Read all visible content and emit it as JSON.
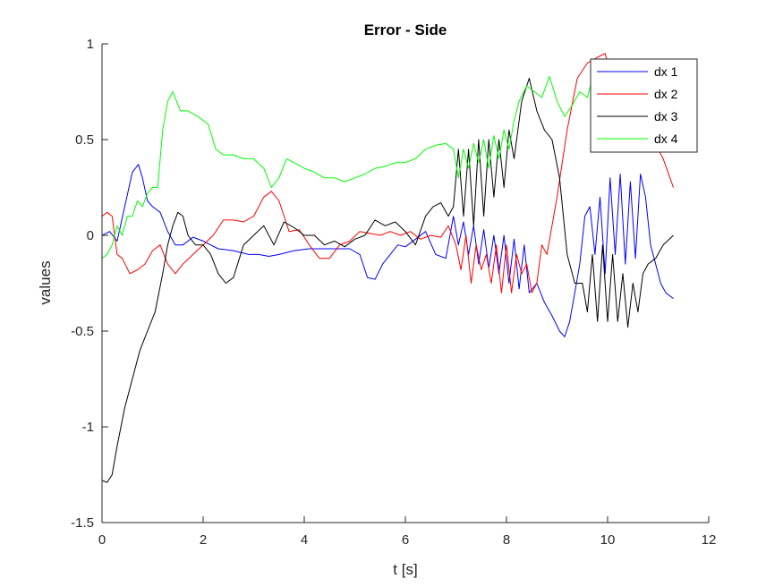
{
  "chart_data": {
    "type": "line",
    "title": "Error - Side",
    "xlabel": "t [s]",
    "ylabel": "values",
    "xlim": [
      0,
      12
    ],
    "ylim": [
      -1.5,
      1
    ],
    "xticks": [
      0,
      2,
      4,
      6,
      8,
      10,
      12
    ],
    "yticks": [
      -1.5,
      -1,
      -0.5,
      0,
      0.5,
      1
    ],
    "xtick_labels": [
      "0",
      "2",
      "4",
      "6",
      "8",
      "10",
      "12"
    ],
    "ytick_labels": [
      "-1.5",
      "-1",
      "-0.5",
      "0",
      "0.5",
      "1"
    ],
    "grid": false,
    "legend_position": "top-right",
    "series": [
      {
        "name": "dx 1",
        "color": "#0000ff",
        "x": [
          0,
          0.15,
          0.3,
          0.45,
          0.6,
          0.72,
          0.8,
          0.9,
          1.0,
          1.15,
          1.3,
          1.45,
          1.6,
          1.8,
          2.0,
          2.3,
          2.6,
          2.9,
          3.1,
          3.3,
          3.5,
          3.8,
          4.1,
          4.5,
          4.9,
          5.1,
          5.25,
          5.4,
          5.55,
          5.7,
          5.85,
          6.0,
          6.2,
          6.4,
          6.6,
          6.8,
          6.95,
          7.05,
          7.15,
          7.25,
          7.35,
          7.45,
          7.55,
          7.65,
          7.75,
          7.85,
          7.95,
          8.05,
          8.15,
          8.25,
          8.35,
          8.45,
          8.6,
          8.75,
          8.9,
          9.05,
          9.15,
          9.25,
          9.35,
          9.45,
          9.55,
          9.65,
          9.75,
          9.85,
          9.95,
          10.05,
          10.15,
          10.25,
          10.35,
          10.45,
          10.55,
          10.65,
          10.75,
          10.85,
          10.95,
          11.05,
          11.15,
          11.3
        ],
        "values": [
          0,
          0.02,
          -0.03,
          0.15,
          0.33,
          0.37,
          0.3,
          0.18,
          0.15,
          0.12,
          0.02,
          -0.05,
          -0.05,
          -0.01,
          -0.03,
          -0.07,
          -0.08,
          -0.1,
          -0.1,
          -0.11,
          -0.1,
          -0.08,
          -0.07,
          -0.07,
          -0.07,
          -0.1,
          -0.22,
          -0.23,
          -0.15,
          -0.1,
          -0.05,
          -0.06,
          -0.02,
          0.02,
          -0.1,
          -0.12,
          0.1,
          -0.05,
          0.07,
          -0.1,
          0.05,
          -0.15,
          0.03,
          -0.17,
          0.0,
          -0.2,
          0.0,
          -0.25,
          -0.02,
          -0.28,
          -0.05,
          -0.3,
          -0.25,
          -0.35,
          -0.42,
          -0.5,
          -0.53,
          -0.45,
          -0.3,
          -0.15,
          0.1,
          0.15,
          -0.1,
          0.2,
          -0.2,
          0.3,
          -0.1,
          0.32,
          -0.15,
          0.28,
          -0.12,
          0.32,
          0.2,
          -0.05,
          -0.15,
          -0.25,
          -0.3,
          -0.33
        ]
      },
      {
        "name": "dx 2",
        "color": "#ff0000",
        "x": [
          0,
          0.1,
          0.2,
          0.3,
          0.4,
          0.55,
          0.7,
          0.85,
          1.0,
          1.15,
          1.3,
          1.45,
          1.6,
          1.8,
          2.0,
          2.2,
          2.4,
          2.6,
          2.8,
          3.0,
          3.2,
          3.35,
          3.5,
          3.7,
          3.9,
          4.1,
          4.3,
          4.5,
          4.7,
          4.9,
          5.1,
          5.3,
          5.5,
          5.7,
          5.9,
          6.1,
          6.3,
          6.5,
          6.7,
          6.85,
          7.0,
          7.1,
          7.2,
          7.3,
          7.4,
          7.5,
          7.6,
          7.7,
          7.8,
          7.9,
          8.0,
          8.1,
          8.2,
          8.3,
          8.4,
          8.5,
          8.6,
          8.7,
          8.8,
          9.0,
          9.2,
          9.4,
          9.6,
          9.8,
          9.95,
          10.1,
          10.3,
          10.5,
          10.7,
          10.9,
          11.1,
          11.3
        ],
        "values": [
          0.1,
          0.12,
          0.1,
          -0.1,
          -0.12,
          -0.2,
          -0.18,
          -0.15,
          -0.08,
          -0.05,
          -0.15,
          -0.2,
          -0.15,
          -0.1,
          -0.05,
          0.0,
          0.08,
          0.08,
          0.07,
          0.1,
          0.2,
          0.23,
          0.18,
          0.02,
          0.03,
          -0.05,
          -0.12,
          -0.12,
          -0.05,
          -0.03,
          0.02,
          0.01,
          0.0,
          0.02,
          0.0,
          0.02,
          -0.02,
          0.0,
          -0.01,
          0.05,
          -0.05,
          -0.18,
          0.0,
          -0.25,
          -0.05,
          -0.18,
          -0.1,
          -0.25,
          -0.05,
          -0.3,
          -0.05,
          -0.3,
          -0.1,
          -0.2,
          -0.15,
          -0.3,
          -0.25,
          -0.05,
          -0.1,
          0.2,
          0.55,
          0.82,
          0.9,
          0.93,
          0.95,
          0.8,
          0.75,
          0.65,
          0.55,
          0.5,
          0.4,
          0.25
        ]
      },
      {
        "name": "dx 3",
        "color": "#000000",
        "x": [
          0,
          0.1,
          0.2,
          0.3,
          0.45,
          0.6,
          0.75,
          0.9,
          1.05,
          1.2,
          1.3,
          1.4,
          1.5,
          1.6,
          1.7,
          1.85,
          2.0,
          2.15,
          2.3,
          2.45,
          2.6,
          2.8,
          3.0,
          3.2,
          3.4,
          3.6,
          3.8,
          4.0,
          4.2,
          4.4,
          4.6,
          4.8,
          5.0,
          5.2,
          5.4,
          5.6,
          5.8,
          6.0,
          6.2,
          6.4,
          6.55,
          6.7,
          6.85,
          6.95,
          7.05,
          7.15,
          7.25,
          7.35,
          7.45,
          7.55,
          7.65,
          7.75,
          7.85,
          7.95,
          8.05,
          8.15,
          8.3,
          8.45,
          8.6,
          8.75,
          8.9,
          9.05,
          9.2,
          9.35,
          9.5,
          9.6,
          9.7,
          9.8,
          9.9,
          10.0,
          10.1,
          10.2,
          10.3,
          10.4,
          10.5,
          10.6,
          10.7,
          10.8,
          10.95,
          11.1,
          11.3
        ],
        "values": [
          -1.28,
          -1.29,
          -1.25,
          -1.1,
          -0.9,
          -0.75,
          -0.6,
          -0.5,
          -0.4,
          -0.2,
          -0.05,
          0.05,
          0.12,
          0.1,
          0.0,
          -0.05,
          -0.05,
          -0.1,
          -0.2,
          -0.25,
          -0.22,
          -0.05,
          0.0,
          0.05,
          -0.05,
          0.07,
          0.04,
          0.0,
          0.0,
          -0.05,
          -0.03,
          -0.06,
          -0.02,
          0.0,
          0.08,
          0.05,
          0.07,
          0.02,
          -0.05,
          0.1,
          0.15,
          0.17,
          0.1,
          0.15,
          0.45,
          0.1,
          0.45,
          0.05,
          0.5,
          0.1,
          0.5,
          0.2,
          0.5,
          0.25,
          0.55,
          0.4,
          0.7,
          0.82,
          0.65,
          0.55,
          0.5,
          0.3,
          -0.1,
          -0.25,
          -0.25,
          -0.4,
          -0.1,
          -0.45,
          -0.05,
          -0.45,
          -0.1,
          -0.45,
          -0.2,
          -0.48,
          -0.25,
          -0.4,
          -0.2,
          -0.15,
          -0.12,
          -0.05,
          0.0
        ]
      },
      {
        "name": "dx 4",
        "color": "#00ff00",
        "x": [
          0,
          0.1,
          0.2,
          0.3,
          0.4,
          0.5,
          0.6,
          0.7,
          0.8,
          0.9,
          1.0,
          1.1,
          1.2,
          1.3,
          1.4,
          1.55,
          1.7,
          1.9,
          2.1,
          2.25,
          2.4,
          2.6,
          2.8,
          3.0,
          3.2,
          3.35,
          3.5,
          3.65,
          3.8,
          4.0,
          4.2,
          4.4,
          4.6,
          4.8,
          5.0,
          5.2,
          5.4,
          5.6,
          5.8,
          6.0,
          6.2,
          6.4,
          6.6,
          6.8,
          6.95,
          7.05,
          7.15,
          7.25,
          7.35,
          7.45,
          7.55,
          7.65,
          7.75,
          7.85,
          7.95,
          8.05,
          8.15,
          8.25,
          8.4,
          8.55,
          8.7,
          8.85,
          9.0,
          9.15,
          9.3,
          9.45,
          9.6,
          9.7
        ],
        "values": [
          -0.12,
          -0.1,
          -0.05,
          0.05,
          0.0,
          0.1,
          0.1,
          0.18,
          0.15,
          0.22,
          0.25,
          0.25,
          0.55,
          0.7,
          0.75,
          0.65,
          0.65,
          0.62,
          0.58,
          0.45,
          0.42,
          0.42,
          0.4,
          0.4,
          0.35,
          0.25,
          0.3,
          0.4,
          0.38,
          0.35,
          0.33,
          0.3,
          0.3,
          0.28,
          0.3,
          0.32,
          0.35,
          0.36,
          0.38,
          0.38,
          0.4,
          0.45,
          0.47,
          0.48,
          0.45,
          0.3,
          0.45,
          0.35,
          0.48,
          0.38,
          0.5,
          0.35,
          0.52,
          0.4,
          0.55,
          0.45,
          0.6,
          0.7,
          0.78,
          0.75,
          0.72,
          0.83,
          0.7,
          0.62,
          0.68,
          0.75,
          0.72,
          0.82
        ]
      }
    ]
  }
}
